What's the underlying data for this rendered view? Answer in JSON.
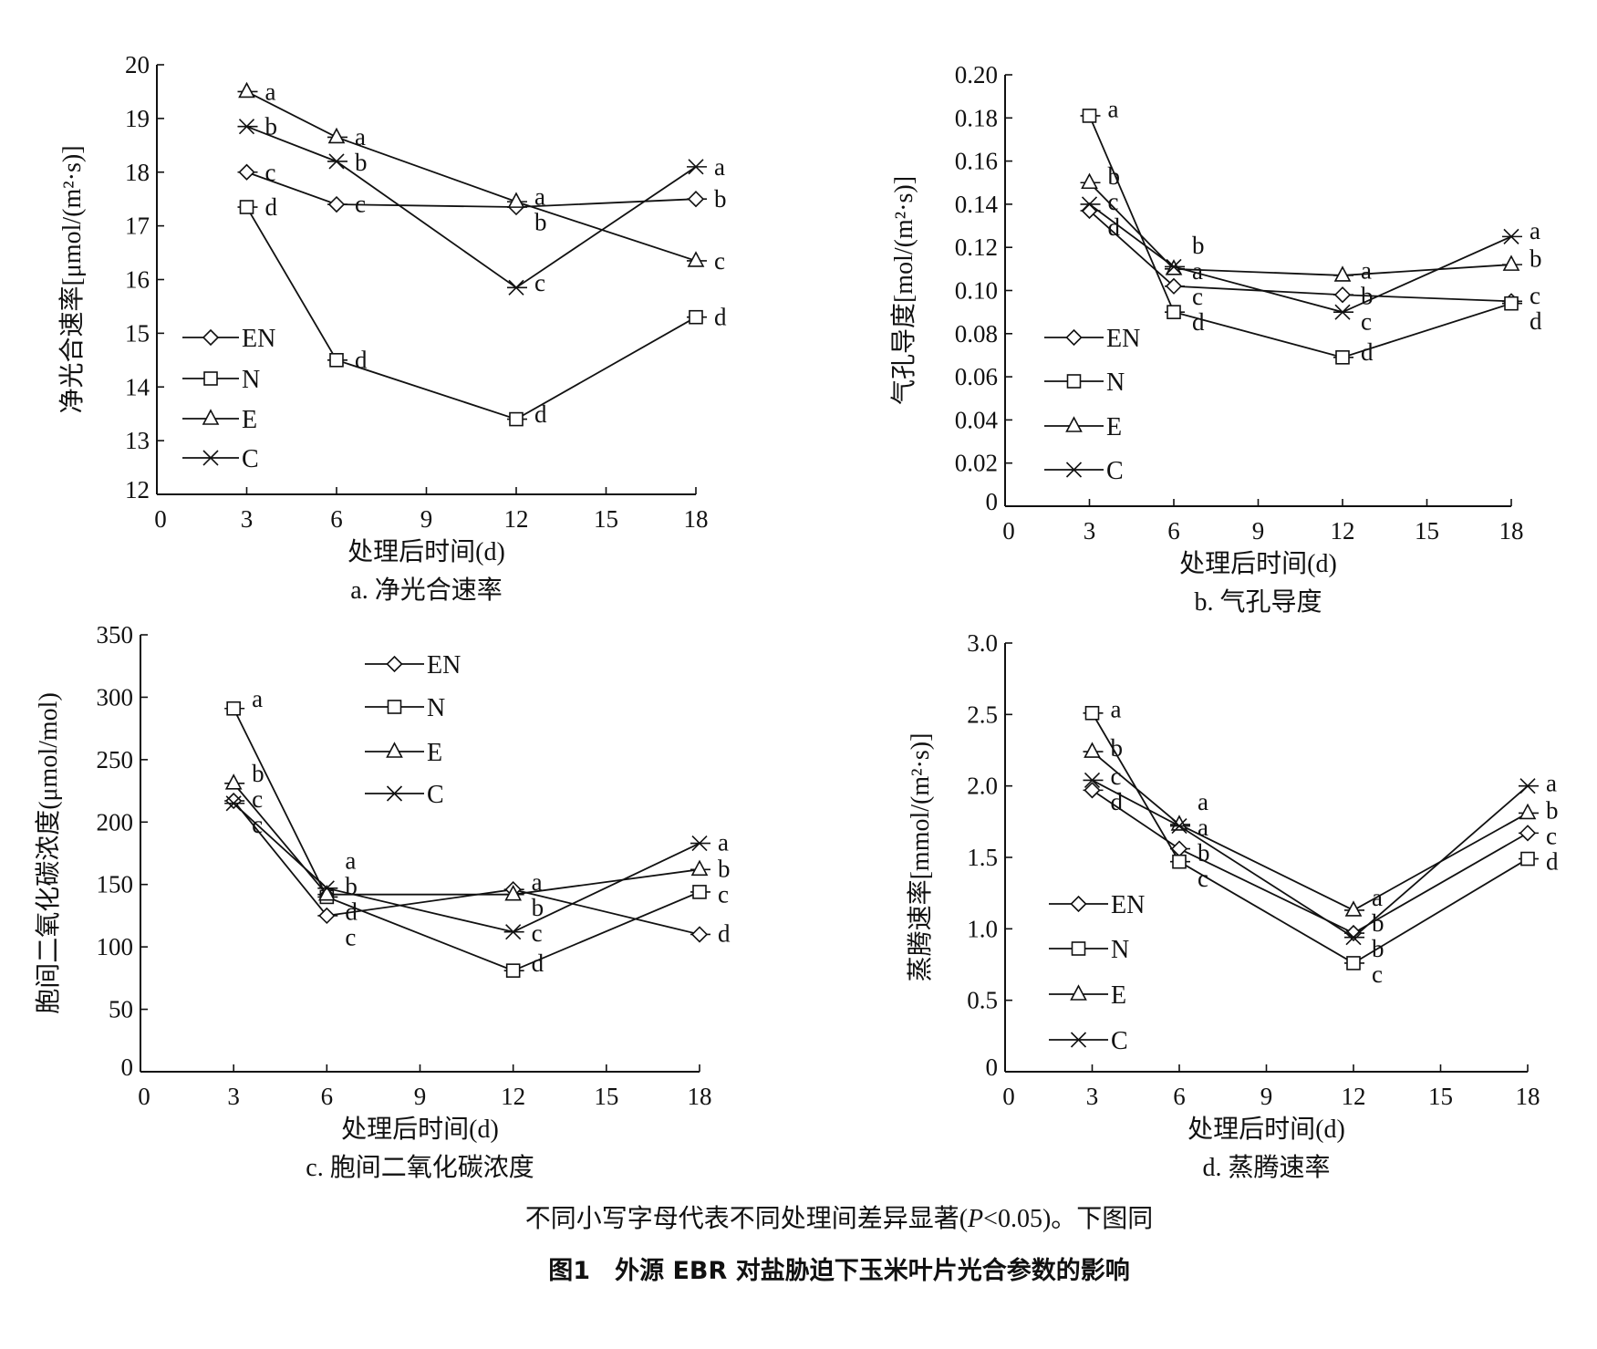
{
  "chart_data": [
    {
      "type": "line",
      "caption": "a. 净光合速率",
      "xlabel": "处理后时间(d)",
      "ylabel": "净光合速率[μmol/(m²·s)]",
      "x": [
        3,
        6,
        12,
        18
      ],
      "xlim": [
        0,
        18
      ],
      "xticks": [
        0,
        3,
        6,
        9,
        12,
        15,
        18
      ],
      "ylim": [
        12,
        20
      ],
      "yticks": [
        "12",
        "13",
        "14",
        "15",
        "16",
        "17",
        "18",
        "19",
        "20"
      ],
      "legend": "left",
      "series": [
        {
          "name": "EN",
          "marker": "diamond",
          "values": [
            18.0,
            17.4,
            17.35,
            17.5
          ],
          "letters": [
            "c",
            "c",
            "b",
            "b"
          ]
        },
        {
          "name": "N",
          "marker": "square",
          "values": [
            17.35,
            14.5,
            13.4,
            15.3
          ],
          "letters": [
            "d",
            "d",
            "d",
            "d"
          ]
        },
        {
          "name": "E",
          "marker": "triangle",
          "values": [
            19.5,
            18.65,
            17.45,
            16.35
          ],
          "letters": [
            "a",
            "a",
            "a",
            "c"
          ]
        },
        {
          "name": "C",
          "marker": "x",
          "values": [
            18.85,
            18.2,
            15.85,
            18.1
          ],
          "letters": [
            "b",
            "b",
            "c",
            "a"
          ]
        }
      ]
    },
    {
      "type": "line",
      "caption": "b. 气孔导度",
      "xlabel": "处理后时间(d)",
      "ylabel": "气孔导度[mol/(m²·s)]",
      "x": [
        3,
        6,
        12,
        18
      ],
      "xlim": [
        0,
        18
      ],
      "xticks": [
        0,
        3,
        6,
        9,
        12,
        15,
        18
      ],
      "ylim": [
        0,
        0.2
      ],
      "yticks": [
        "0",
        "0.02",
        "0.04",
        "0.06",
        "0.08",
        "0.10",
        "0.12",
        "0.14",
        "0.16",
        "0.18",
        "0.20"
      ],
      "legend": "left",
      "series": [
        {
          "name": "EN",
          "marker": "diamond",
          "values": [
            0.137,
            0.102,
            0.098,
            0.095
          ],
          "letters": [
            "d",
            "c",
            "b",
            "c"
          ]
        },
        {
          "name": "N",
          "marker": "square",
          "values": [
            0.181,
            0.09,
            0.069,
            0.094
          ],
          "letters": [
            "a",
            "d",
            "d",
            "d"
          ]
        },
        {
          "name": "E",
          "marker": "triangle",
          "values": [
            0.15,
            0.11,
            0.107,
            0.112
          ],
          "letters": [
            "b",
            "a",
            "a",
            "b"
          ]
        },
        {
          "name": "C",
          "marker": "x",
          "values": [
            0.14,
            0.111,
            0.09,
            0.125
          ],
          "letters": [
            "c",
            "b",
            "c",
            "a"
          ]
        }
      ]
    },
    {
      "type": "line",
      "caption": "c. 胞间二氧化碳浓度",
      "xlabel": "处理后时间(d)",
      "ylabel": "胞间二氧化碳浓度(μmol/mol)",
      "x": [
        3,
        6,
        12,
        18
      ],
      "xlim": [
        0,
        18
      ],
      "xticks": [
        0,
        3,
        6,
        9,
        12,
        15,
        18
      ],
      "ylim": [
        0,
        350
      ],
      "yticks": [
        "0",
        "50",
        "100",
        "150",
        "200",
        "250",
        "300",
        "350"
      ],
      "legend": "top-center",
      "series": [
        {
          "name": "EN",
          "marker": "diamond",
          "values": [
            217,
            125,
            146,
            110
          ],
          "letters": [
            "c",
            "c",
            "a",
            "d"
          ]
        },
        {
          "name": "N",
          "marker": "square",
          "values": [
            291,
            140,
            81,
            144
          ],
          "letters": [
            "a",
            "d",
            "d",
            "c"
          ]
        },
        {
          "name": "E",
          "marker": "triangle",
          "values": [
            231,
            142,
            142,
            162
          ],
          "letters": [
            "b",
            "b",
            "b",
            "b"
          ]
        },
        {
          "name": "C",
          "marker": "x",
          "values": [
            215,
            147,
            112,
            183
          ],
          "letters": [
            "c",
            "a",
            "c",
            "a"
          ]
        }
      ]
    },
    {
      "type": "line",
      "caption": "d. 蒸腾速率",
      "xlabel": "处理后时间(d)",
      "ylabel": "蒸腾速率[mmol/(m²·s)]",
      "x": [
        3,
        6,
        12,
        18
      ],
      "xlim": [
        0,
        18
      ],
      "xticks": [
        0,
        3,
        6,
        9,
        12,
        15,
        18
      ],
      "ylim": [
        0,
        3
      ],
      "yticks": [
        "0",
        "0.5",
        "1.0",
        "1.5",
        "2.0",
        "2.5",
        "3.0"
      ],
      "legend": "left",
      "series": [
        {
          "name": "EN",
          "marker": "diamond",
          "values": [
            1.97,
            1.56,
            0.97,
            1.67
          ],
          "letters": [
            "d",
            "b",
            "b",
            "c"
          ]
        },
        {
          "name": "N",
          "marker": "square",
          "values": [
            2.51,
            1.47,
            0.76,
            1.49
          ],
          "letters": [
            "a",
            "c",
            "c",
            "d"
          ]
        },
        {
          "name": "E",
          "marker": "triangle",
          "values": [
            2.24,
            1.73,
            1.13,
            1.81
          ],
          "letters": [
            "b",
            "a",
            "a",
            "b"
          ]
        },
        {
          "name": "C",
          "marker": "x",
          "values": [
            2.04,
            1.72,
            0.94,
            2.0
          ],
          "letters": [
            "c",
            "a",
            "b",
            "a"
          ]
        }
      ]
    }
  ],
  "figure": {
    "note_prefix": "不同小写字母代表不同处理间差异显著(",
    "note_p": "P",
    "note_suffix": "<0.05)。下图同",
    "title": "图1　外源 EBR 对盐胁迫下玉米叶片光合参数的影响"
  }
}
